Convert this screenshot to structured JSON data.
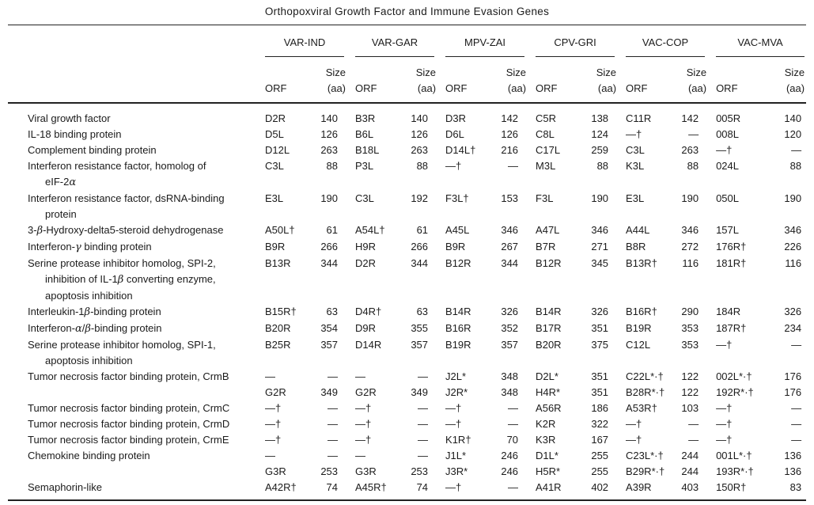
{
  "title": "Orthopoxviral Growth Factor and Immune Evasion Genes",
  "table": {
    "virus_groups": [
      "VAR-IND",
      "VAR-GAR",
      "MPV-ZAI",
      "CPV-GRI",
      "VAC-COP",
      "VAC-MVA"
    ],
    "subheader": {
      "orf": "ORF",
      "size_line1": "Size",
      "size_line2": "(aa)"
    },
    "rows": [
      {
        "gene": [
          "Viral growth factor"
        ],
        "cells": [
          [
            "D2R",
            "140"
          ],
          [
            "B3R",
            "140"
          ],
          [
            "D3R",
            "142"
          ],
          [
            "C5R",
            "138"
          ],
          [
            "C11R",
            "142"
          ],
          [
            "005R",
            "140"
          ]
        ]
      },
      {
        "gene": [
          "IL-18 binding protein"
        ],
        "cells": [
          [
            "D5L",
            "126"
          ],
          [
            "B6L",
            "126"
          ],
          [
            "D6L",
            "126"
          ],
          [
            "C8L",
            "124"
          ],
          [
            "—†",
            "—"
          ],
          [
            "008L",
            "120"
          ]
        ]
      },
      {
        "gene": [
          "Complement binding protein"
        ],
        "cells": [
          [
            "D12L",
            "263"
          ],
          [
            "B18L",
            "263"
          ],
          [
            "D14L†",
            "216"
          ],
          [
            "C17L",
            "259"
          ],
          [
            "C3L",
            "263"
          ],
          [
            "—†",
            "—"
          ]
        ]
      },
      {
        "gene": [
          "Interferon resistance factor, homolog of",
          "eIF-2α"
        ],
        "cells": [
          [
            "C3L",
            "88"
          ],
          [
            "P3L",
            "88"
          ],
          [
            "—†",
            "—"
          ],
          [
            "M3L",
            "88"
          ],
          [
            "K3L",
            "88"
          ],
          [
            "024L",
            "88"
          ]
        ]
      },
      {
        "gene": [
          "Interferon resistance factor, dsRNA-binding",
          "protein"
        ],
        "cells": [
          [
            "E3L",
            "190"
          ],
          [
            "C3L",
            "192"
          ],
          [
            "F3L†",
            "153"
          ],
          [
            "F3L",
            "190"
          ],
          [
            "E3L",
            "190"
          ],
          [
            "050L",
            "190"
          ]
        ]
      },
      {
        "gene": [
          "3-β-Hydroxy-delta5-steroid dehydrogenase"
        ],
        "cells": [
          [
            "A50L†",
            "61"
          ],
          [
            "A54L†",
            "61"
          ],
          [
            "A45L",
            "346"
          ],
          [
            "A47L",
            "346"
          ],
          [
            "A44L",
            "346"
          ],
          [
            "157L",
            "346"
          ]
        ]
      },
      {
        "gene": [
          "Interferon-γ binding protein"
        ],
        "cells": [
          [
            "B9R",
            "266"
          ],
          [
            "H9R",
            "266"
          ],
          [
            "B9R",
            "267"
          ],
          [
            "B7R",
            "271"
          ],
          [
            "B8R",
            "272"
          ],
          [
            "176R†",
            "226"
          ]
        ]
      },
      {
        "gene": [
          "Serine protease inhibitor homolog, SPI-2,",
          "inhibition of IL-1β converting enzyme,",
          "apoptosis inhibition"
        ],
        "cells": [
          [
            "B13R",
            "344"
          ],
          [
            "D2R",
            "344"
          ],
          [
            "B12R",
            "344"
          ],
          [
            "B12R",
            "345"
          ],
          [
            "B13R†",
            "116"
          ],
          [
            "181R†",
            "116"
          ]
        ]
      },
      {
        "gene": [
          "Interleukin-1β-binding protein"
        ],
        "cells": [
          [
            "B15R†",
            "63"
          ],
          [
            "D4R†",
            "63"
          ],
          [
            "B14R",
            "326"
          ],
          [
            "B14R",
            "326"
          ],
          [
            "B16R†",
            "290"
          ],
          [
            "184R",
            "326"
          ]
        ]
      },
      {
        "gene": [
          "Interferon-α/β-binding protein"
        ],
        "cells": [
          [
            "B20R",
            "354"
          ],
          [
            "D9R",
            "355"
          ],
          [
            "B16R",
            "352"
          ],
          [
            "B17R",
            "351"
          ],
          [
            "B19R",
            "353"
          ],
          [
            "187R†",
            "234"
          ]
        ]
      },
      {
        "gene": [
          "Serine protease inhibitor homolog, SPI-1,",
          "apoptosis inhibition"
        ],
        "cells": [
          [
            "B25R",
            "357"
          ],
          [
            "D14R",
            "357"
          ],
          [
            "B19R",
            "357"
          ],
          [
            "B20R",
            "375"
          ],
          [
            "C12L",
            "353"
          ],
          [
            "—†",
            "—"
          ]
        ]
      },
      {
        "gene": [
          "Tumor necrosis factor binding protein, CrmB"
        ],
        "cells": [
          [
            "—",
            "—"
          ],
          [
            "—",
            "—"
          ],
          [
            "J2L*",
            "348"
          ],
          [
            "D2L*",
            "351"
          ],
          [
            "C22L*·†",
            "122"
          ],
          [
            "002L*·†",
            "176"
          ]
        ]
      },
      {
        "gene": [],
        "cells": [
          [
            "G2R",
            "349"
          ],
          [
            "G2R",
            "349"
          ],
          [
            "J2R*",
            "348"
          ],
          [
            "H4R*",
            "351"
          ],
          [
            "B28R*·†",
            "122"
          ],
          [
            "192R*·†",
            "176"
          ]
        ]
      },
      {
        "gene": [
          "Tumor necrosis factor binding protein, CrmC"
        ],
        "cells": [
          [
            "—†",
            "—"
          ],
          [
            "—†",
            "—"
          ],
          [
            "—†",
            "—"
          ],
          [
            "A56R",
            "186"
          ],
          [
            "A53R†",
            "103"
          ],
          [
            "—†",
            "—"
          ]
        ]
      },
      {
        "gene": [
          "Tumor necrosis factor binding protein, CrmD"
        ],
        "cells": [
          [
            "—†",
            "—"
          ],
          [
            "—†",
            "—"
          ],
          [
            "—†",
            "—"
          ],
          [
            "K2R",
            "322"
          ],
          [
            "—†",
            "—"
          ],
          [
            "—†",
            "—"
          ]
        ]
      },
      {
        "gene": [
          "Tumor necrosis factor binding protein, CrmE"
        ],
        "cells": [
          [
            "—†",
            "—"
          ],
          [
            "—†",
            "—"
          ],
          [
            "K1R†",
            "70"
          ],
          [
            "K3R",
            "167"
          ],
          [
            "—†",
            "—"
          ],
          [
            "—†",
            "—"
          ]
        ]
      },
      {
        "gene": [
          "Chemokine binding protein"
        ],
        "cells": [
          [
            "—",
            "—"
          ],
          [
            "—",
            "—"
          ],
          [
            "J1L*",
            "246"
          ],
          [
            "D1L*",
            "255"
          ],
          [
            "C23L*·†",
            "244"
          ],
          [
            "001L*·†",
            "136"
          ]
        ]
      },
      {
        "gene": [],
        "cells": [
          [
            "G3R",
            "253"
          ],
          [
            "G3R",
            "253"
          ],
          [
            "J3R*",
            "246"
          ],
          [
            "H5R*",
            "255"
          ],
          [
            "B29R*·†",
            "244"
          ],
          [
            "193R*·†",
            "136"
          ]
        ]
      },
      {
        "gene": [
          "Semaphorin-like"
        ],
        "cells": [
          [
            "A42R†",
            "74"
          ],
          [
            "A45R†",
            "74"
          ],
          [
            "—†",
            "—"
          ],
          [
            "A41R",
            "402"
          ],
          [
            "A39R",
            "403"
          ],
          [
            "150R†",
            "83"
          ]
        ]
      }
    ]
  }
}
